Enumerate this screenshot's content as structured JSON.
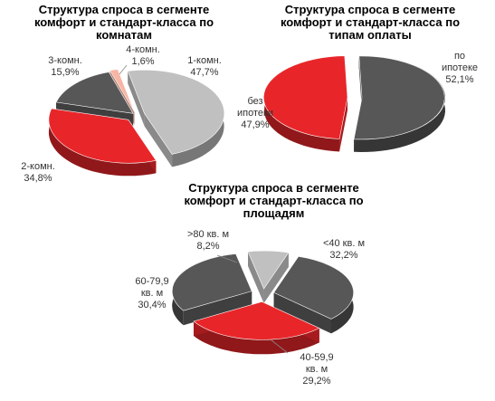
{
  "chart_data": [
    {
      "type": "pie",
      "title": "Структура  спроса в сегменте\nкомфорт и стандарт-класса по\nкомнатам",
      "slices": [
        {
          "name": "1-комн.",
          "value": 47.7,
          "label": "1-комн.\n47,7%",
          "color": "#c0c0c0"
        },
        {
          "name": "2-комн.",
          "value": 34.8,
          "label": "2-комн.\n34,8%",
          "color": "#e8262a"
        },
        {
          "name": "3-комн.",
          "value": 15.9,
          "label": "3-комн.\n15,9%",
          "color": "#575757"
        },
        {
          "name": "4-комн.",
          "value": 1.6,
          "label": "4-комн.\n1,6%",
          "color": "#f7b5a3"
        }
      ]
    },
    {
      "type": "pie",
      "title": "Структура  спроса в сегменте\nкомфорт и стандарт-класса по\nтипам оплаты",
      "slices": [
        {
          "name": "по ипотеке",
          "value": 52.1,
          "label": "по\nипотеке\n52,1%",
          "color": "#575757"
        },
        {
          "name": "без ипотеки",
          "value": 47.9,
          "label": "без\nипотеки\n47,9%",
          "color": "#e8262a"
        }
      ]
    },
    {
      "type": "pie",
      "title": "Структура  спроса в сегменте\nкомфорт и стандарт-класса по\nплощадям",
      "slices": [
        {
          "name": "<40 кв. м",
          "value": 32.2,
          "label": "<40 кв. м\n32,2%",
          "color": "#575757"
        },
        {
          "name": "40-59,9 кв. м",
          "value": 29.2,
          "label": "40-59,9\nкв. м\n29,2%",
          "color": "#e8262a"
        },
        {
          "name": "60-79,9 кв. м",
          "value": 30.4,
          "label": "60-79,9\nкв. м\n30,4%",
          "color": "#575757"
        },
        {
          "name": ">80 кв. м",
          "value": 8.2,
          "label": ">80 кв. м\n8,2%",
          "color": "#c0c0c0"
        }
      ]
    }
  ]
}
